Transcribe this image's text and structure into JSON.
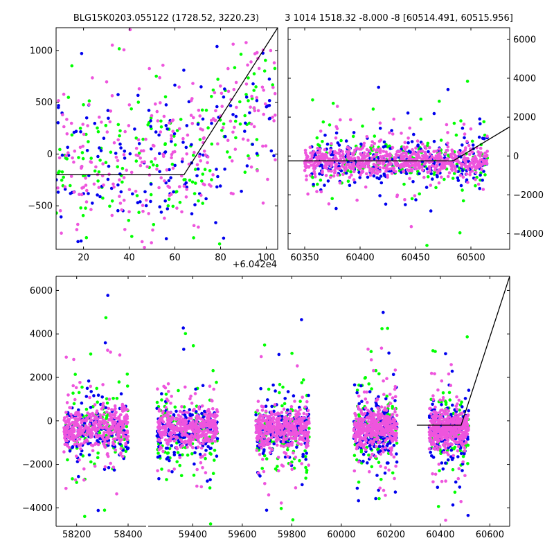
{
  "figure": {
    "title_left": "BLG15K0203.055122 (1728.52, 3220.23)",
    "title_right": "3 1014 1518.32 -8.000 -8 [60514.491, 60515.956]"
  },
  "colors": {
    "green": "#00ff00",
    "blue": "#0000ee",
    "magenta": "#ee55dd",
    "model_line": "#000000",
    "axes": "#000000"
  },
  "chart_data": [
    {
      "type": "scatter",
      "panel": "top-left zoom",
      "title": "BLG15K0203.055122 (1728.52, 3220.23)",
      "x_offset_label": "+6.042e4",
      "xlim": [
        8,
        105
      ],
      "ylim": [
        -920,
        1220
      ],
      "xticks": [
        20,
        40,
        60,
        80,
        100
      ],
      "yticks": [
        -500,
        0,
        500,
        1000
      ],
      "y_axis_side": "left",
      "series": [
        {
          "color": "green",
          "scatter_band": {
            "x": [
              8,
              104
            ],
            "center": -100,
            "spread": 500,
            "count": 160
          }
        },
        {
          "color": "blue",
          "scatter_band": {
            "x": [
              8,
              104
            ],
            "center": -100,
            "spread": 500,
            "count": 170
          }
        },
        {
          "color": "magenta",
          "scatter_band": {
            "x": [
              8,
              104
            ],
            "center": -60,
            "spread": 480,
            "count": 260
          }
        }
      ],
      "model": {
        "x": [
          8,
          64,
          105
        ],
        "y": [
          -200,
          -200,
          1220
        ]
      }
    },
    {
      "type": "scatter",
      "panel": "top-right",
      "title": "3 1014 1518.32 -8.000 -8 [60514.491, 60515.956]",
      "xlim": [
        60335,
        60535
      ],
      "ylim": [
        -4800,
        6600
      ],
      "xticks": [
        60350,
        60400,
        60450,
        60500
      ],
      "yticks": [
        -4000,
        -2000,
        0,
        2000,
        4000,
        6000
      ],
      "y_axis_side": "right",
      "series": [
        {
          "color": "green",
          "scatter_band": {
            "x": [
              60355,
              60515
            ],
            "center": -300,
            "spread": 900,
            "count": 180
          }
        },
        {
          "color": "blue",
          "scatter_band": {
            "x": [
              60355,
              60515
            ],
            "center": -300,
            "spread": 800,
            "count": 260
          }
        },
        {
          "color": "magenta",
          "scatter_band": {
            "x": [
              60350,
              60515
            ],
            "center": -250,
            "spread": 500,
            "count": 700
          }
        }
      ],
      "model": {
        "x": [
          60335,
          60484,
          60535
        ],
        "y": [
          -250,
          -250,
          1500
        ]
      }
    },
    {
      "type": "scatter",
      "panel": "bottom full light curve",
      "xlim": [
        58120,
        60680
      ],
      "broken_axis": {
        "left_xlim": [
          58120,
          58470
        ],
        "right_xlim": [
          59220,
          60680
        ]
      },
      "ylim": [
        -4850,
        6650
      ],
      "xticks": [
        58200,
        58400,
        59400,
        59600,
        59800,
        60000,
        60200,
        60400,
        60600
      ],
      "yticks": [
        -4000,
        -2000,
        0,
        2000,
        4000,
        6000
      ],
      "seasons": [
        {
          "x": [
            58150,
            58400
          ]
        },
        {
          "x": [
            59255,
            59500
          ]
        },
        {
          "x": [
            59655,
            59870
          ]
        },
        {
          "x": [
            60050,
            60225
          ]
        },
        {
          "x": [
            60355,
            60515
          ]
        }
      ],
      "series": [
        {
          "color": "green",
          "scatter_band": {
            "center": -500,
            "spread": 1200,
            "count_per_season": 110
          }
        },
        {
          "color": "blue",
          "scatter_band": {
            "center": -450,
            "spread": 900,
            "count_per_season": 160
          }
        },
        {
          "color": "magenta",
          "scatter_band": {
            "center": -350,
            "spread": 600,
            "count_per_season": 420
          }
        }
      ],
      "model": {
        "x": [
          60305,
          60484,
          60680
        ],
        "y": [
          -200,
          -200,
          6650
        ]
      }
    }
  ]
}
